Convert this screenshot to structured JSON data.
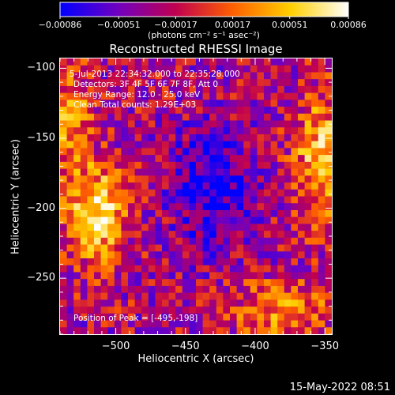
{
  "chart_data": {
    "type": "heatmap",
    "title": "Reconstructed RHESSI Image",
    "xlabel": "Heliocentric X (arcsec)",
    "ylabel": "Heliocentric Y (arcsec)",
    "xlim": [
      -540,
      -345
    ],
    "ylim": [
      -290,
      -93
    ],
    "x_ticks": [
      "−500",
      "−450",
      "−400",
      "−350"
    ],
    "x_tick_values": [
      -500,
      -450,
      -400,
      -350
    ],
    "y_ticks": [
      "−100",
      "−150",
      "−200",
      "−250"
    ],
    "y_tick_values": [
      -100,
      -150,
      -200,
      -250
    ],
    "colorbar": {
      "ticks": [
        "−0.00086",
        "−0.00051",
        "−0.00017",
        "0.00017",
        "0.00051",
        "0.00086"
      ],
      "tick_values": [
        -0.00086,
        -0.00051,
        -0.00017,
        0.00017,
        0.00051,
        0.00086
      ],
      "range": [
        -0.00086,
        0.00086
      ],
      "unit": "(photons cm⁻² s⁻¹ asec⁻²)",
      "colormap": [
        "#0000ff",
        "#7000c0",
        "#c00050",
        "#ff6000",
        "#ffd000",
        "#ffffff"
      ]
    },
    "annotations": [
      "5-Jul-2013 22:34:32.000 to 22:35:28.000",
      "Detectors: 3F 4F 5F 6F 7F 8F, Att 0",
      "Energy Range: 12.0 - 25.0 keV",
      "Clean     Total counts: 1.29E+03"
    ],
    "peak_label": "Position of Peak = [-495,-198]",
    "peak_position": [
      -495,
      -198
    ],
    "grid_size": [
      40,
      40
    ]
  },
  "footer": {
    "timestamp": "15-May-2022 08:51"
  }
}
